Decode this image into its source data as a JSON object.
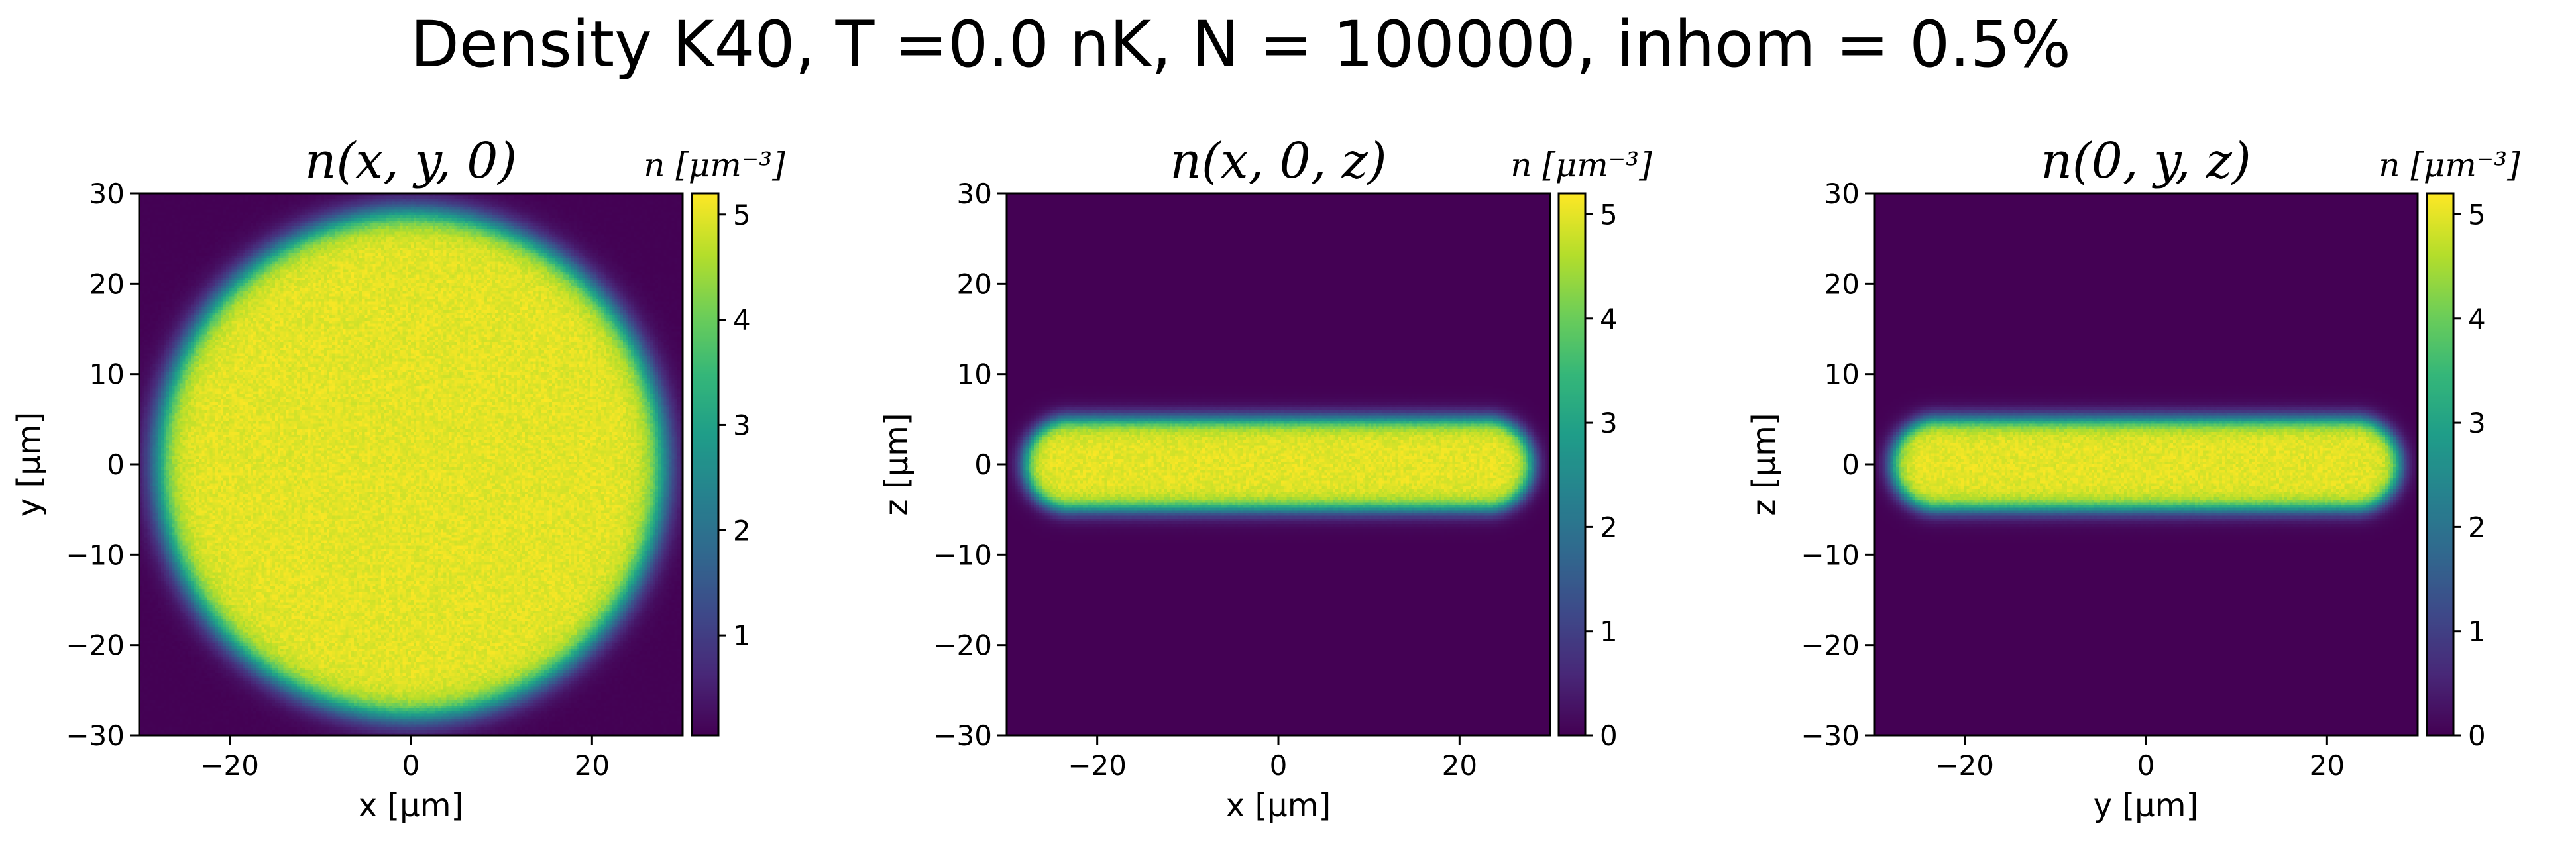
{
  "figure": {
    "suptitle": "Density K40, T =0.0 nK, N = 100000, inhom = 0.5%"
  },
  "colormap": {
    "name": "viridis",
    "stops": [
      "#440154",
      "#482878",
      "#3e4989",
      "#31688e",
      "#26828e",
      "#1f9e89",
      "#35b779",
      "#6ece58",
      "#b5de2b",
      "#fde725"
    ]
  },
  "chart_data": [
    {
      "type": "heatmap",
      "title": "n(x, y, 0)",
      "xlabel": "x [μm]",
      "ylabel": "y [μm]",
      "xlim": [
        -30,
        30
      ],
      "ylim": [
        -30,
        30
      ],
      "xticks": [
        "−20",
        "0",
        "20"
      ],
      "xtick_values": [
        -20,
        0,
        20
      ],
      "yticks": [
        "30",
        "20",
        "10",
        "0",
        "−10",
        "−20",
        "−30"
      ],
      "ytick_values": [
        30,
        20,
        10,
        0,
        -10,
        -20,
        -30
      ],
      "colorbar": {
        "label": "n [μm⁻³]",
        "range": [
          0.05,
          5.2
        ],
        "ticks": [
          "1",
          "2",
          "3",
          "4",
          "5"
        ],
        "tick_values": [
          1,
          2,
          3,
          4,
          5
        ]
      },
      "distribution": {
        "shape": "disk",
        "center": [
          0,
          0
        ],
        "radius_x": 28,
        "radius_y": 28,
        "edge_width": 2.5,
        "peak_density": 5.0,
        "background_density": 0.05,
        "noise_amplitude": 0.18
      }
    },
    {
      "type": "heatmap",
      "title": "n(x, 0, z)",
      "xlabel": "x [μm]",
      "ylabel": "z [μm]",
      "xlim": [
        -30,
        30
      ],
      "ylim": [
        -30,
        30
      ],
      "xticks": [
        "−20",
        "0",
        "20"
      ],
      "xtick_values": [
        -20,
        0,
        20
      ],
      "yticks": [
        "30",
        "20",
        "10",
        "0",
        "−10",
        "−20",
        "−30"
      ],
      "ytick_values": [
        30,
        20,
        10,
        0,
        -10,
        -20,
        -30
      ],
      "colorbar": {
        "label": "n [μm⁻³]",
        "range": [
          0,
          5.2
        ],
        "ticks": [
          "0",
          "1",
          "2",
          "3",
          "4",
          "5"
        ],
        "tick_values": [
          0,
          1,
          2,
          3,
          4,
          5
        ]
      },
      "distribution": {
        "shape": "slab",
        "center": [
          0,
          0
        ],
        "radius_x": 28,
        "radius_y": 5,
        "edge_width": 2.5,
        "peak_density": 5.0,
        "background_density": 0.0,
        "noise_amplitude": 0.18
      }
    },
    {
      "type": "heatmap",
      "title": "n(0, y, z)",
      "xlabel": "y [μm]",
      "ylabel": "z [μm]",
      "xlim": [
        -30,
        30
      ],
      "ylim": [
        -30,
        30
      ],
      "xticks": [
        "−20",
        "0",
        "20"
      ],
      "xtick_values": [
        -20,
        0,
        20
      ],
      "yticks": [
        "30",
        "20",
        "10",
        "0",
        "−10",
        "−20",
        "−30"
      ],
      "ytick_values": [
        30,
        20,
        10,
        0,
        -10,
        -20,
        -30
      ],
      "colorbar": {
        "label": "n [μm⁻³]",
        "range": [
          0,
          5.2
        ],
        "ticks": [
          "0",
          "1",
          "2",
          "3",
          "4",
          "5"
        ],
        "tick_values": [
          0,
          1,
          2,
          3,
          4,
          5
        ]
      },
      "distribution": {
        "shape": "slab",
        "center": [
          0,
          0
        ],
        "radius_x": 28,
        "radius_y": 5,
        "edge_width": 2.5,
        "peak_density": 5.0,
        "background_density": 0.0,
        "noise_amplitude": 0.18
      }
    }
  ]
}
